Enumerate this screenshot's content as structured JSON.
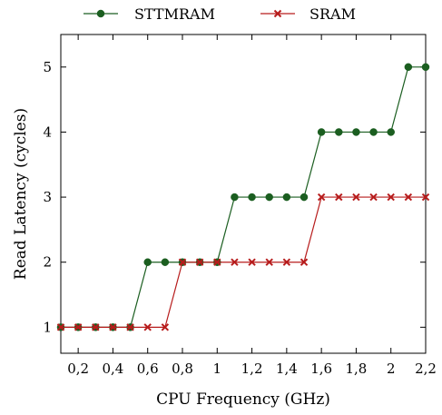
{
  "chart_data": {
    "type": "line",
    "xlabel": "CPU Frequency (GHz)",
    "ylabel": "Read Latency (cycles)",
    "xlim": [
      0.1,
      2.2
    ],
    "ylim": [
      0.6,
      5.5
    ],
    "xticks": [
      0.2,
      0.4,
      0.6,
      0.8,
      1,
      1.2,
      1.4,
      1.6,
      1.8,
      2,
      2.2
    ],
    "xtick_labels": [
      "0,2",
      "0,4",
      "0,6",
      "0,8",
      "1",
      "1,2",
      "1,4",
      "1,6",
      "1,8",
      "2",
      "2,2"
    ],
    "yticks": [
      1,
      2,
      3,
      4,
      5
    ],
    "ytick_labels": [
      "1",
      "2",
      "3",
      "4",
      "5"
    ],
    "x": [
      0.1,
      0.2,
      0.3,
      0.4,
      0.5,
      0.6,
      0.7,
      0.8,
      0.9,
      1.0,
      1.1,
      1.2,
      1.3,
      1.4,
      1.5,
      1.6,
      1.7,
      1.8,
      1.9,
      2.0,
      2.1,
      2.2
    ],
    "series": [
      {
        "name": "STTMRAM",
        "color": "#1b5e20",
        "marker": "circle",
        "values": [
          1,
          1,
          1,
          1,
          1,
          2,
          2,
          2,
          2,
          2,
          3,
          3,
          3,
          3,
          3,
          4,
          4,
          4,
          4,
          4,
          5,
          5
        ]
      },
      {
        "name": "SRAM",
        "color": "#b71c1c",
        "marker": "x",
        "values": [
          1,
          1,
          1,
          1,
          1,
          1,
          1,
          2,
          2,
          2,
          2,
          2,
          2,
          2,
          2,
          3,
          3,
          3,
          3,
          3,
          3,
          3
        ]
      }
    ],
    "legend_position": "top-center",
    "grid": false
  }
}
